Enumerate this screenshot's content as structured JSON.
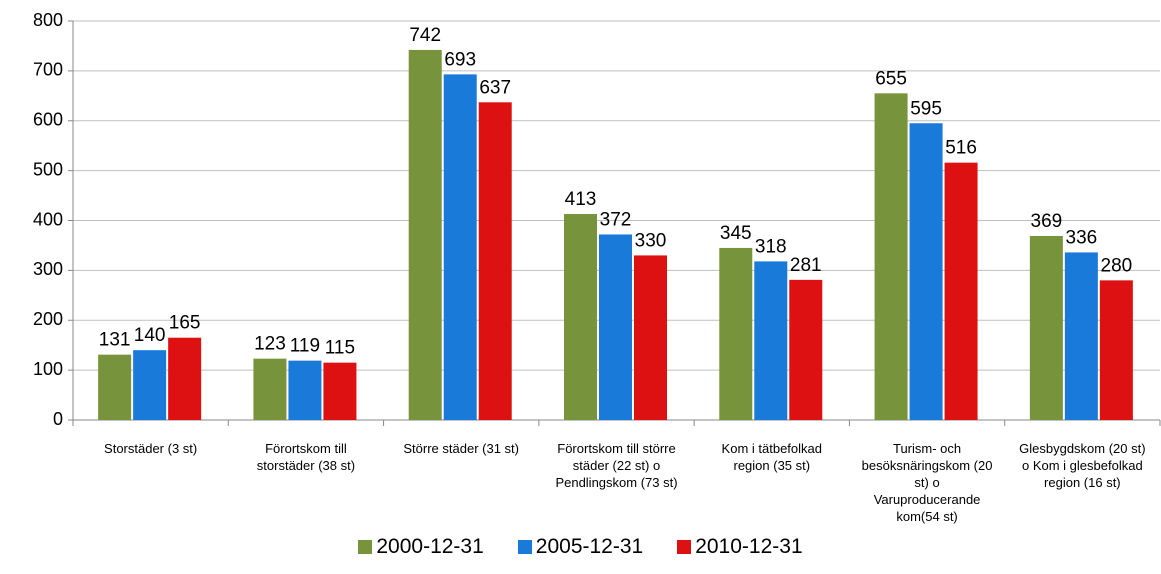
{
  "chart_data": {
    "type": "bar",
    "categories": [
      "Storstäder (3 st)",
      "Förortskom till storstäder (38 st)",
      "Större städer (31 st)",
      "Förortskom till större städer (22 st) o Pendlingskom (73 st)",
      "Kom i tätbefolkad region (35 st)",
      "Turism- och besöksnäringskom (20 st) o Varuproducerande kom(54 st)",
      "Glesbygdskom (20 st) o Kom i glesbefolkad region (16 st)"
    ],
    "series": [
      {
        "name": "2000-12-31",
        "color": "#77933c",
        "values": [
          131,
          123,
          742,
          413,
          345,
          655,
          369
        ]
      },
      {
        "name": "2005-12-31",
        "color": "#1a7ad9",
        "values": [
          140,
          119,
          693,
          372,
          318,
          595,
          336
        ]
      },
      {
        "name": "2010-12-31",
        "color": "#dd1111",
        "values": [
          165,
          115,
          637,
          330,
          281,
          516,
          280
        ]
      }
    ],
    "ylim": [
      0,
      800
    ],
    "yticks": [
      0,
      100,
      200,
      300,
      400,
      500,
      600,
      700,
      800
    ],
    "grid": true,
    "legend": "bottom"
  }
}
